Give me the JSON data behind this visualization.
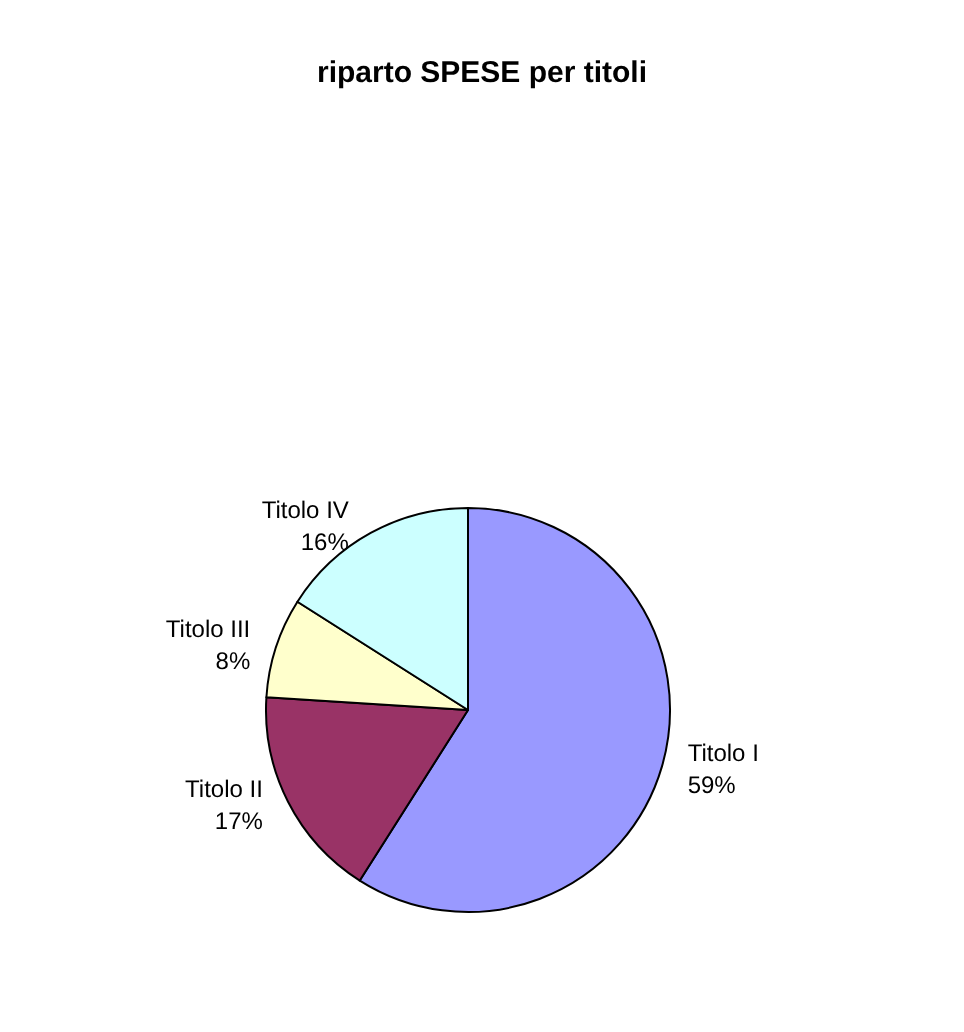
{
  "chart_data": {
    "type": "pie",
    "title": "riparto SPESE per titoli",
    "categories": [
      "Titolo I",
      "Titolo II",
      "Titolo III",
      "Titolo IV"
    ],
    "values": [
      59,
      17,
      8,
      16
    ],
    "value_labels": [
      "59%",
      "17%",
      "8%",
      "16%"
    ],
    "colors": [
      "#9999ff",
      "#993366",
      "#ffffcc",
      "#ccffff"
    ],
    "legend": false
  }
}
